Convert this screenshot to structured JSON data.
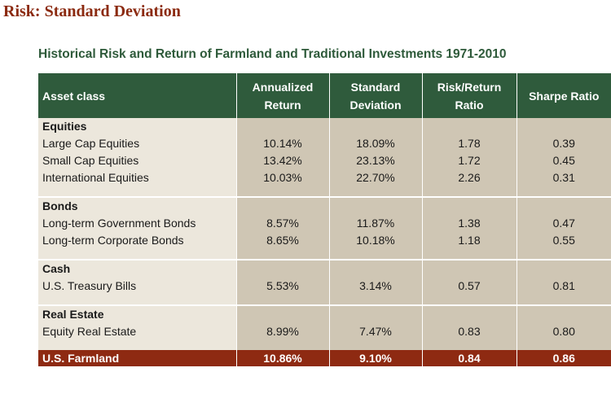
{
  "page_title": "Risk: Standard Deviation",
  "subtitle": "Historical Risk and Return of Farmland and Traditional Investments 1971-2010",
  "columns": [
    "Asset class",
    "Annualized Return",
    "Standard Deviation",
    "Risk/Return Ratio",
    "Sharpe Ratio"
  ],
  "groups": [
    {
      "name": "Equities",
      "rows": [
        {
          "asset": "Large Cap Equities",
          "return": "10.14%",
          "stdev": "18.09%",
          "ratio": "1.78",
          "sharpe": "0.39"
        },
        {
          "asset": "Small Cap Equities",
          "return": "13.42%",
          "stdev": "23.13%",
          "ratio": "1.72",
          "sharpe": "0.45"
        },
        {
          "asset": "International Equities",
          "return": "10.03%",
          "stdev": "22.70%",
          "ratio": "2.26",
          "sharpe": "0.31"
        }
      ]
    },
    {
      "name": "Bonds",
      "rows": [
        {
          "asset": "Long-term Government Bonds",
          "return": "8.57%",
          "stdev": "11.87%",
          "ratio": "1.38",
          "sharpe": "0.47"
        },
        {
          "asset": "Long-term Corporate Bonds",
          "return": "8.65%",
          "stdev": "10.18%",
          "ratio": "1.18",
          "sharpe": "0.55"
        }
      ]
    },
    {
      "name": "Cash",
      "rows": [
        {
          "asset": "U.S. Treasury Bills",
          "return": "5.53%",
          "stdev": "3.14%",
          "ratio": "0.57",
          "sharpe": "0.81"
        }
      ]
    },
    {
      "name": "Real Estate",
      "rows": [
        {
          "asset": "Equity Real Estate",
          "return": "8.99%",
          "stdev": "7.47%",
          "ratio": "0.83",
          "sharpe": "0.80"
        }
      ]
    }
  ],
  "farmland": {
    "asset": "U.S. Farmland",
    "return": "10.86%",
    "stdev": "9.10%",
    "ratio": "0.84",
    "sharpe": "0.86"
  },
  "colors": {
    "title": "#8b2a10",
    "subtitle": "#2e5a3a",
    "header_bg": "#2f5b3c",
    "label_bg": "#ece7dc",
    "value_bg": "#cfc6b4",
    "highlight_bg": "#8e2a12"
  }
}
